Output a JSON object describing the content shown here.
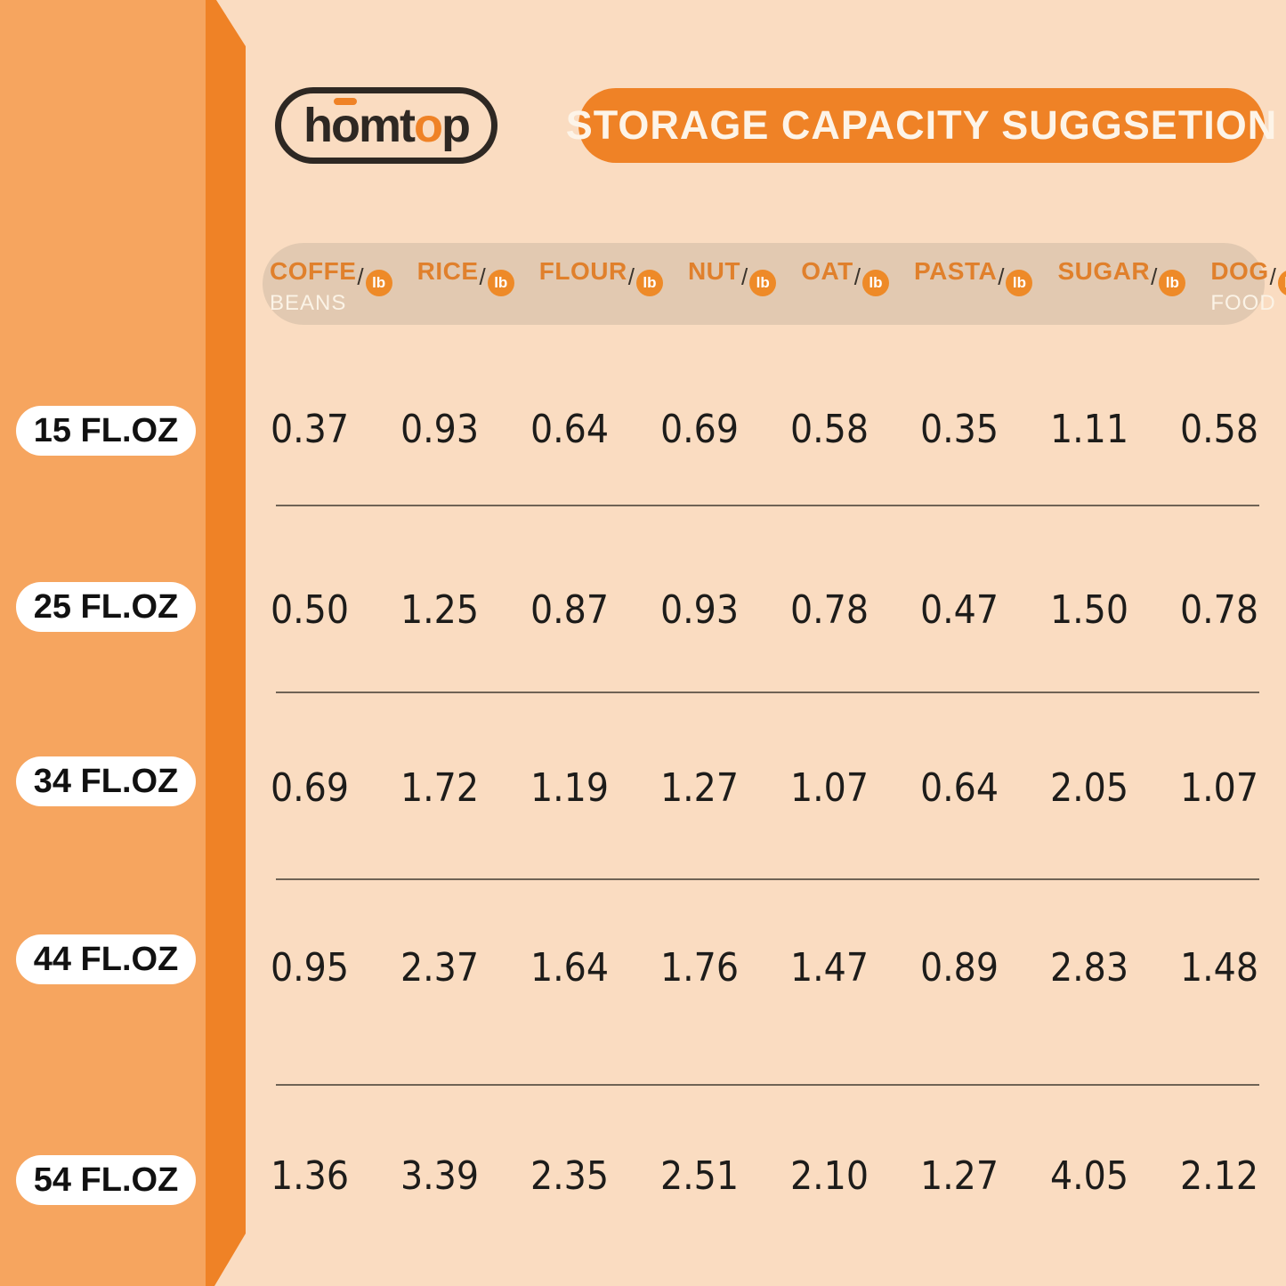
{
  "logo": {
    "p1": "h",
    "p2": "o",
    "p3": "mt",
    "p4": "o",
    "p5": "p"
  },
  "banner": {
    "title": "STORAGE CAPACITY SUGGSETION"
  },
  "table": {
    "unit": "lb",
    "columns": [
      {
        "name": "COFFE",
        "sub": "BEANS"
      },
      {
        "name": "RICE",
        "sub": ""
      },
      {
        "name": "FLOUR",
        "sub": ""
      },
      {
        "name": "NUT",
        "sub": ""
      },
      {
        "name": "OAT",
        "sub": ""
      },
      {
        "name": "PASTA",
        "sub": ""
      },
      {
        "name": "SUGAR",
        "sub": ""
      },
      {
        "name": "DOG",
        "sub": "FOOD"
      }
    ],
    "rows": [
      {
        "label": "15 FL.OZ",
        "values": [
          "0.37",
          "0.93",
          "0.64",
          "0.69",
          "0.58",
          "0.35",
          "1.11",
          "0.58"
        ]
      },
      {
        "label": "25 FL.OZ",
        "values": [
          "0.50",
          "1.25",
          "0.87",
          "0.93",
          "0.78",
          "0.47",
          "1.50",
          "0.78"
        ]
      },
      {
        "label": "34 FL.OZ",
        "values": [
          "0.69",
          "1.72",
          "1.19",
          "1.27",
          "1.07",
          "0.64",
          "2.05",
          "1.07"
        ]
      },
      {
        "label": "44 FL.OZ",
        "values": [
          "0.95",
          "2.37",
          "1.64",
          "1.76",
          "1.47",
          "0.89",
          "2.83",
          "1.48"
        ]
      },
      {
        "label": "54 FL.OZ",
        "values": [
          "1.36",
          "3.39",
          "2.35",
          "2.51",
          "2.10",
          "1.27",
          "4.05",
          "2.12"
        ]
      }
    ]
  },
  "colors": {
    "accent_orange": "#EF8226",
    "sidebar_orange": "#F6A55F",
    "background_peach": "#FADCC1",
    "header_bg_tan": "#E2C9B1",
    "header_text_orange": "#E0802C",
    "lb_circle_orange": "#EE8A28",
    "divider_brown": "#6F6355",
    "logo_dark": "#2E2823"
  },
  "chart_data": {
    "type": "table",
    "title": "STORAGE CAPACITY SUGGSETION",
    "unit": "lb",
    "categories": [
      "COFFE BEANS",
      "RICE",
      "FLOUR",
      "NUT",
      "OAT",
      "PASTA",
      "SUGAR",
      "DOG FOOD"
    ],
    "row_labels": [
      "15 FL.OZ",
      "25 FL.OZ",
      "34 FL.OZ",
      "44 FL.OZ",
      "54 FL.OZ"
    ],
    "values": [
      [
        0.37,
        0.93,
        0.64,
        0.69,
        0.58,
        0.35,
        1.11,
        0.58
      ],
      [
        0.5,
        1.25,
        0.87,
        0.93,
        0.78,
        0.47,
        1.5,
        0.78
      ],
      [
        0.69,
        1.72,
        1.19,
        1.27,
        1.07,
        0.64,
        2.05,
        1.07
      ],
      [
        0.95,
        2.37,
        1.64,
        1.76,
        1.47,
        0.89,
        2.83,
        1.48
      ],
      [
        1.36,
        3.39,
        2.35,
        2.51,
        2.1,
        1.27,
        4.05,
        2.12
      ]
    ]
  }
}
